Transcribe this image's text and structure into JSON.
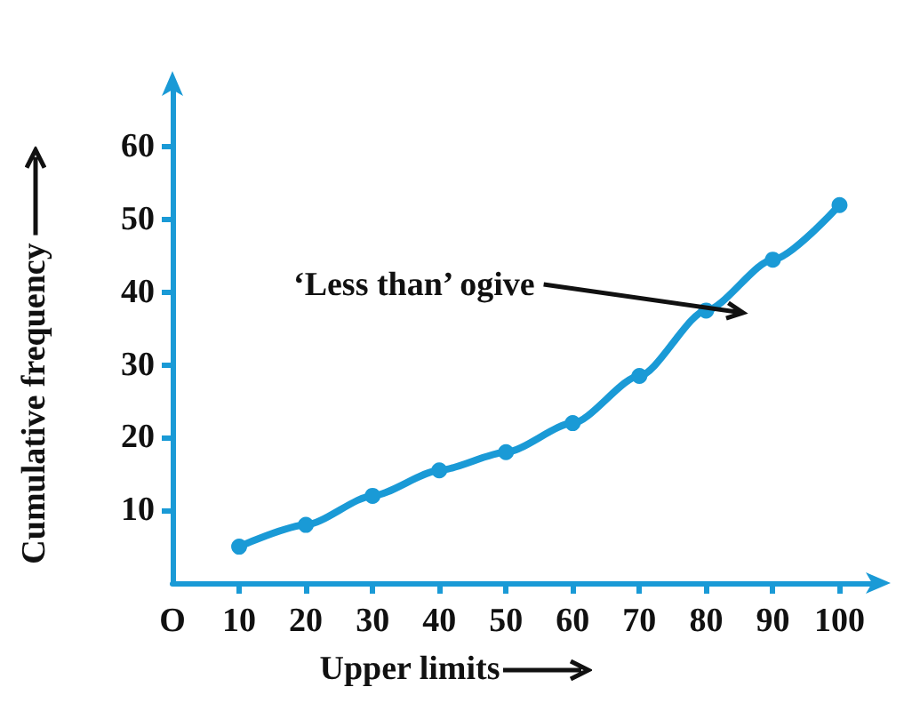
{
  "chart_data": {
    "type": "line",
    "xlabel": "Upper limits",
    "ylabel": "Cumulative frequency",
    "x": [
      10,
      20,
      30,
      40,
      50,
      60,
      70,
      80,
      90,
      100
    ],
    "series": [
      {
        "color": "#1a9ad6",
        "values": [
          5,
          8,
          12,
          15.5,
          18,
          22,
          28.5,
          37.5,
          44.5,
          52
        ]
      }
    ],
    "xlim": [
      0,
      105
    ],
    "xticks": [
      {
        "value": 0,
        "label": "O"
      },
      10,
      20,
      30,
      40,
      50,
      60,
      70,
      80,
      90,
      100
    ],
    "ylim": [
      0,
      68
    ],
    "yticks": [
      10,
      20,
      30,
      40,
      50,
      60
    ],
    "annotations": [
      "‘Less than’ ogive"
    ],
    "grid": false,
    "marker": "circle",
    "line_style": "solid"
  }
}
